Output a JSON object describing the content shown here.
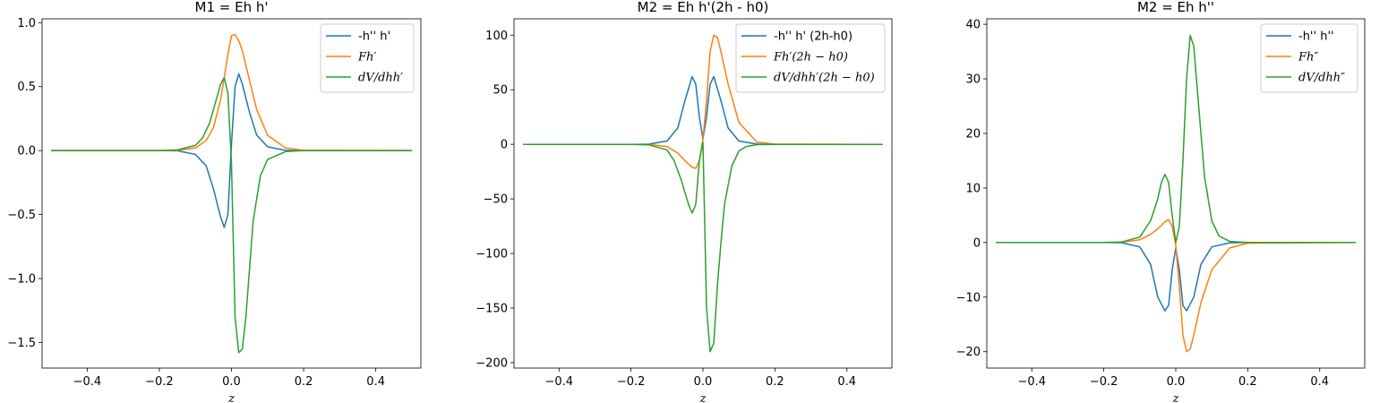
{
  "colors": {
    "series1": "#1f77b4",
    "series2": "#ff7f0e",
    "series3": "#2ca02c"
  },
  "chart_data": [
    {
      "type": "line",
      "title": "M1 = Eh h'",
      "xlabel": "z",
      "ylabel": "",
      "xlim": [
        -0.525,
        0.525
      ],
      "ylim": [
        -1.7,
        1.03
      ],
      "xticks": [
        -0.4,
        -0.2,
        0.0,
        0.2,
        0.4
      ],
      "xtick_labels": [
        "−0.4",
        "−0.2",
        "0.0",
        "0.2",
        "0.4"
      ],
      "yticks": [
        -1.5,
        -1.0,
        -0.5,
        0.0,
        0.5,
        1.0
      ],
      "ytick_labels": [
        "−1.5",
        "−1.0",
        "−0.5",
        "0.0",
        "0.5",
        "1.0"
      ],
      "legend_position": "top-right",
      "series": [
        {
          "name": "-h'' h'",
          "math": false,
          "color": "#1f77b4",
          "x": [
            -0.5,
            -0.2,
            -0.15,
            -0.1,
            -0.07,
            -0.05,
            -0.03,
            -0.02,
            -0.01,
            0.0,
            0.01,
            0.02,
            0.03,
            0.05,
            0.07,
            0.1,
            0.15,
            0.2,
            0.5
          ],
          "y": [
            0,
            0,
            -0.002,
            -0.03,
            -0.12,
            -0.3,
            -0.52,
            -0.6,
            -0.5,
            0.05,
            0.5,
            0.6,
            0.52,
            0.3,
            0.12,
            0.03,
            0.002,
            0,
            0
          ]
        },
        {
          "name": "Fh′",
          "math": true,
          "color": "#ff7f0e",
          "x": [
            -0.5,
            -0.2,
            -0.15,
            -0.1,
            -0.07,
            -0.05,
            -0.03,
            -0.01,
            0.0,
            0.01,
            0.02,
            0.03,
            0.05,
            0.07,
            0.1,
            0.15,
            0.2,
            0.5
          ],
          "y": [
            0,
            0,
            0.002,
            0.02,
            0.08,
            0.18,
            0.4,
            0.75,
            0.9,
            0.905,
            0.86,
            0.78,
            0.55,
            0.32,
            0.12,
            0.02,
            0.002,
            0
          ]
        },
        {
          "name": "dV/dhh′",
          "math": true,
          "color": "#2ca02c",
          "x": [
            -0.5,
            -0.2,
            -0.15,
            -0.1,
            -0.08,
            -0.06,
            -0.04,
            -0.03,
            -0.02,
            -0.01,
            0.0,
            0.01,
            0.02,
            0.03,
            0.04,
            0.06,
            0.08,
            0.1,
            0.15,
            0.2,
            0.5
          ],
          "y": [
            0,
            0,
            0.005,
            0.04,
            0.1,
            0.22,
            0.42,
            0.52,
            0.57,
            0.45,
            -0.1,
            -1.3,
            -1.58,
            -1.55,
            -1.3,
            -0.55,
            -0.2,
            -0.07,
            -0.008,
            0,
            0
          ]
        }
      ]
    },
    {
      "type": "line",
      "title": "M2 = Eh h'(2h - h0)",
      "xlabel": "z",
      "ylabel": "",
      "xlim": [
        -0.525,
        0.525
      ],
      "ylim": [
        -205,
        115
      ],
      "xticks": [
        -0.4,
        -0.2,
        0.0,
        0.2,
        0.4
      ],
      "xtick_labels": [
        "−0.4",
        "−0.2",
        "0.0",
        "0.2",
        "0.4"
      ],
      "yticks": [
        -200,
        -150,
        -100,
        -50,
        0,
        50,
        100
      ],
      "ytick_labels": [
        "−200",
        "−150",
        "−100",
        "−50",
        "0",
        "50",
        "100"
      ],
      "legend_position": "top-right",
      "series": [
        {
          "name": "-h'' h' (2h-h0)",
          "math": false,
          "color": "#1f77b4",
          "x": [
            -0.5,
            -0.2,
            -0.15,
            -0.1,
            -0.07,
            -0.05,
            -0.03,
            -0.02,
            -0.01,
            0.0,
            0.01,
            0.02,
            0.03,
            0.05,
            0.07,
            0.1,
            0.15,
            0.2,
            0.5
          ],
          "y": [
            0,
            0,
            0.2,
            3,
            15,
            40,
            62,
            55,
            25,
            5,
            25,
            55,
            62,
            40,
            15,
            3,
            0.2,
            0,
            0
          ]
        },
        {
          "name": "Fh′(2h − h0)",
          "math": true,
          "color": "#ff7f0e",
          "x": [
            -0.5,
            -0.2,
            -0.15,
            -0.1,
            -0.07,
            -0.05,
            -0.03,
            -0.02,
            -0.01,
            0.0,
            0.01,
            0.02,
            0.03,
            0.04,
            0.05,
            0.07,
            0.1,
            0.15,
            0.2,
            0.5
          ],
          "y": [
            0,
            0,
            -0.2,
            -2,
            -8,
            -15,
            -21,
            -22,
            -15,
            5,
            40,
            85,
            100,
            98,
            85,
            55,
            20,
            2,
            0.2,
            0
          ]
        },
        {
          "name": "dV/dhh′(2h − h0)",
          "math": true,
          "color": "#2ca02c",
          "x": [
            -0.5,
            -0.2,
            -0.15,
            -0.1,
            -0.08,
            -0.06,
            -0.04,
            -0.03,
            -0.02,
            -0.01,
            0.0,
            0.01,
            0.02,
            0.03,
            0.04,
            0.05,
            0.06,
            0.08,
            0.1,
            0.12,
            0.15,
            0.2,
            0.5
          ],
          "y": [
            0,
            0,
            -0.5,
            -5,
            -15,
            -33,
            -55,
            -63,
            -55,
            -15,
            2,
            -150,
            -190,
            -182,
            -130,
            -90,
            -55,
            -20,
            -6,
            -2,
            -0.3,
            0,
            0
          ]
        }
      ]
    },
    {
      "type": "line",
      "title": "M2 = Eh h''",
      "xlabel": "z",
      "ylabel": "",
      "xlim": [
        -0.525,
        0.525
      ],
      "ylim": [
        -23,
        41
      ],
      "xticks": [
        -0.4,
        -0.2,
        0.0,
        0.2,
        0.4
      ],
      "xtick_labels": [
        "−0.4",
        "−0.2",
        "0.0",
        "0.2",
        "0.4"
      ],
      "yticks": [
        -20,
        -10,
        0,
        10,
        20,
        30,
        40
      ],
      "ytick_labels": [
        "−20",
        "−10",
        "0",
        "10",
        "20",
        "30",
        "40"
      ],
      "legend_position": "top-right",
      "series": [
        {
          "name": "-h'' h''",
          "math": false,
          "color": "#1f77b4",
          "x": [
            -0.5,
            -0.2,
            -0.15,
            -0.1,
            -0.07,
            -0.05,
            -0.03,
            -0.02,
            -0.01,
            0.0,
            0.01,
            0.02,
            0.03,
            0.05,
            0.07,
            0.1,
            0.15,
            0.2,
            0.5
          ],
          "y": [
            0,
            0,
            -0.05,
            -0.8,
            -4,
            -10,
            -12.5,
            -11.5,
            -5,
            -1,
            -5,
            -11.5,
            -12.5,
            -10,
            -4,
            -0.8,
            -0.05,
            0,
            0
          ]
        },
        {
          "name": "Fh″",
          "math": true,
          "color": "#ff7f0e",
          "x": [
            -0.5,
            -0.2,
            -0.15,
            -0.1,
            -0.07,
            -0.05,
            -0.03,
            -0.02,
            -0.01,
            0.0,
            0.01,
            0.02,
            0.03,
            0.04,
            0.05,
            0.07,
            0.1,
            0.15,
            0.2,
            0.5
          ],
          "y": [
            0,
            0,
            0.05,
            0.5,
            1.5,
            2.5,
            3.8,
            4.2,
            3,
            -0.5,
            -8,
            -17,
            -20,
            -19.5,
            -17,
            -11,
            -5,
            -1,
            -0.1,
            0
          ]
        },
        {
          "name": "dV/dhh″",
          "math": true,
          "color": "#2ca02c",
          "x": [
            -0.5,
            -0.2,
            -0.15,
            -0.1,
            -0.07,
            -0.05,
            -0.04,
            -0.03,
            -0.02,
            -0.01,
            0.0,
            0.01,
            0.02,
            0.03,
            0.04,
            0.05,
            0.07,
            0.08,
            0.1,
            0.12,
            0.15,
            0.2,
            0.5
          ],
          "y": [
            0,
            0,
            0.1,
            1,
            4,
            8,
            11,
            12.5,
            11,
            5,
            0,
            3,
            15,
            30,
            38,
            36,
            20,
            12,
            4,
            1.2,
            0.2,
            0,
            0
          ]
        }
      ]
    }
  ]
}
